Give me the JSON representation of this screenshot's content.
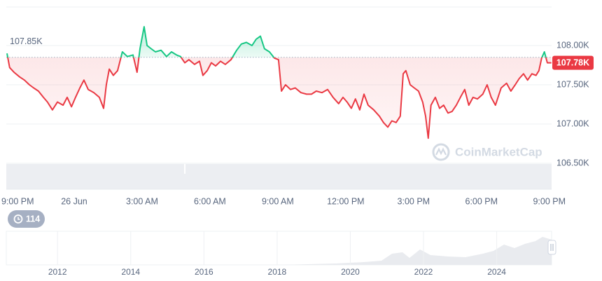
{
  "chart_data": {
    "type": "line",
    "x": [
      0.03,
      0.15,
      0.34,
      0.59,
      0.8,
      1.02,
      1.21,
      1.42,
      1.64,
      1.82,
      2.04,
      2.26,
      2.51,
      2.69,
      2.88,
      3.06,
      3.25,
      3.43,
      3.62,
      3.87,
      4.11,
      4.3,
      4.42,
      4.55,
      4.73,
      4.92,
      5.13,
      5.35,
      5.6,
      5.78,
      5.91,
      6.09,
      6.22,
      6.4,
      6.59,
      6.84,
      7.08,
      7.3,
      7.52,
      7.7,
      7.89,
      8.07,
      8.32,
      8.54,
      8.69,
      8.88,
      9.06,
      9.25,
      9.47,
      9.68,
      9.93,
      10.18,
      10.39,
      10.61,
      10.86,
      11.04,
      11.23,
      11.41,
      11.63,
      11.85,
      12.03,
      12.16,
      12.34,
      12.56,
      12.77,
      13.02,
      13.27,
      13.49,
      13.7,
      13.95,
      14.2,
      14.44,
      14.69,
      14.88,
      15.06,
      15.25,
      15.43,
      15.62,
      15.81,
      15.99,
      16.24,
      16.49,
      16.67,
      16.86,
      17.04,
      17.23,
      17.41,
      17.54,
      17.66,
      17.85,
      18.03,
      18.22,
      18.4,
      18.53,
      18.65,
      18.77,
      18.96,
      19.15,
      19.33,
      19.52,
      19.7,
      19.89,
      20.07,
      20.26,
      20.44,
      20.63,
      20.82,
      21.06,
      21.25,
      21.43,
      21.62,
      21.87,
      22.11,
      22.3,
      22.49,
      22.67,
      22.86,
      23.04,
      23.23,
      23.41,
      23.54,
      23.66,
      23.78,
      23.91,
      24.09
    ],
    "values": [
      107900,
      107720,
      107660,
      107600,
      107560,
      107500,
      107460,
      107420,
      107340,
      107280,
      107180,
      107280,
      107240,
      107340,
      107220,
      107340,
      107460,
      107560,
      107440,
      107400,
      107340,
      107200,
      107500,
      107700,
      107620,
      107680,
      107920,
      107860,
      107880,
      107660,
      107960,
      108240,
      108000,
      107960,
      107920,
      107940,
      107860,
      107920,
      107880,
      107860,
      107780,
      107820,
      107760,
      107800,
      107620,
      107680,
      107780,
      107740,
      107800,
      107760,
      107820,
      107940,
      108020,
      108040,
      108000,
      108080,
      108120,
      107960,
      107920,
      107840,
      107820,
      107420,
      107500,
      107440,
      107460,
      107400,
      107380,
      107380,
      107420,
      107400,
      107440,
      107340,
      107260,
      107340,
      107280,
      107200,
      107320,
      107180,
      107380,
      107240,
      107180,
      107100,
      107020,
      106960,
      107040,
      107020,
      107100,
      107640,
      107680,
      107500,
      107460,
      107420,
      107280,
      107100,
      106820,
      107240,
      107340,
      107200,
      107240,
      107140,
      107160,
      107240,
      107340,
      107440,
      107240,
      107340,
      107320,
      107380,
      107500,
      107340,
      107240,
      107460,
      107520,
      107420,
      107500,
      107580,
      107640,
      107560,
      107640,
      107620,
      107680,
      107840,
      107920,
      107780,
      107780
    ],
    "up_color": "#16c784",
    "down_color": "#ea3943",
    "xlim": [
      0,
      24.1
    ],
    "xticks": [
      {
        "value": 0,
        "label": "9:00 PM"
      },
      {
        "value": 3,
        "label": "26 Jun"
      },
      {
        "value": 6,
        "label": "3:00 AM"
      },
      {
        "value": 9,
        "label": "6:00 AM"
      },
      {
        "value": 12,
        "label": "9:00 AM"
      },
      {
        "value": 15,
        "label": "12:00 PM"
      },
      {
        "value": 18,
        "label": "3:00 PM"
      },
      {
        "value": 21,
        "label": "6:00 PM"
      },
      {
        "value": 24,
        "label": "9:00 PM"
      }
    ],
    "ylim": [
      106500,
      108500
    ],
    "yticks": [
      {
        "value": 108000,
        "label": "108.00K"
      },
      {
        "value": 107500,
        "label": "107.50K"
      },
      {
        "value": 107000,
        "label": "107.00K"
      },
      {
        "value": 106500,
        "label": "106.50K"
      }
    ],
    "grid": true,
    "reference": {
      "value": 107850,
      "label": "107.85K"
    },
    "current": {
      "value": 107780,
      "label": "107.78K"
    },
    "navigator": {
      "xlim": [
        2010.6,
        2025.5
      ],
      "xticks": [
        2012,
        2014,
        2016,
        2018,
        2020,
        2022,
        2024
      ]
    }
  },
  "watermark": "CoinMarketCap",
  "history_badge": "114"
}
